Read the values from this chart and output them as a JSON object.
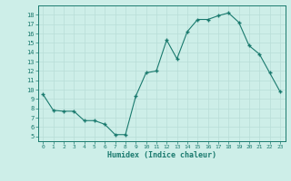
{
  "x": [
    0,
    1,
    2,
    3,
    4,
    5,
    6,
    7,
    8,
    9,
    10,
    11,
    12,
    13,
    14,
    15,
    16,
    17,
    18,
    19,
    20,
    21,
    22,
    23
  ],
  "y": [
    9.5,
    7.8,
    7.7,
    7.7,
    6.7,
    6.7,
    6.3,
    5.2,
    5.2,
    9.3,
    11.8,
    12.0,
    15.3,
    13.3,
    16.2,
    17.5,
    17.5,
    17.9,
    18.2,
    17.2,
    14.7,
    13.8,
    11.8,
    9.8
  ],
  "xlabel": "Humidex (Indice chaleur)",
  "xlim": [
    -0.5,
    23.5
  ],
  "ylim": [
    4.5,
    19.0
  ],
  "yticks": [
    5,
    6,
    7,
    8,
    9,
    10,
    11,
    12,
    13,
    14,
    15,
    16,
    17,
    18
  ],
  "xticks": [
    0,
    1,
    2,
    3,
    4,
    5,
    6,
    7,
    8,
    9,
    10,
    11,
    12,
    13,
    14,
    15,
    16,
    17,
    18,
    19,
    20,
    21,
    22,
    23
  ],
  "line_color": "#1a7a6e",
  "bg_color": "#cdeee8",
  "grid_color": "#b8ddd7",
  "tick_label_color": "#1a7a6e",
  "xlabel_color": "#1a7a6e"
}
